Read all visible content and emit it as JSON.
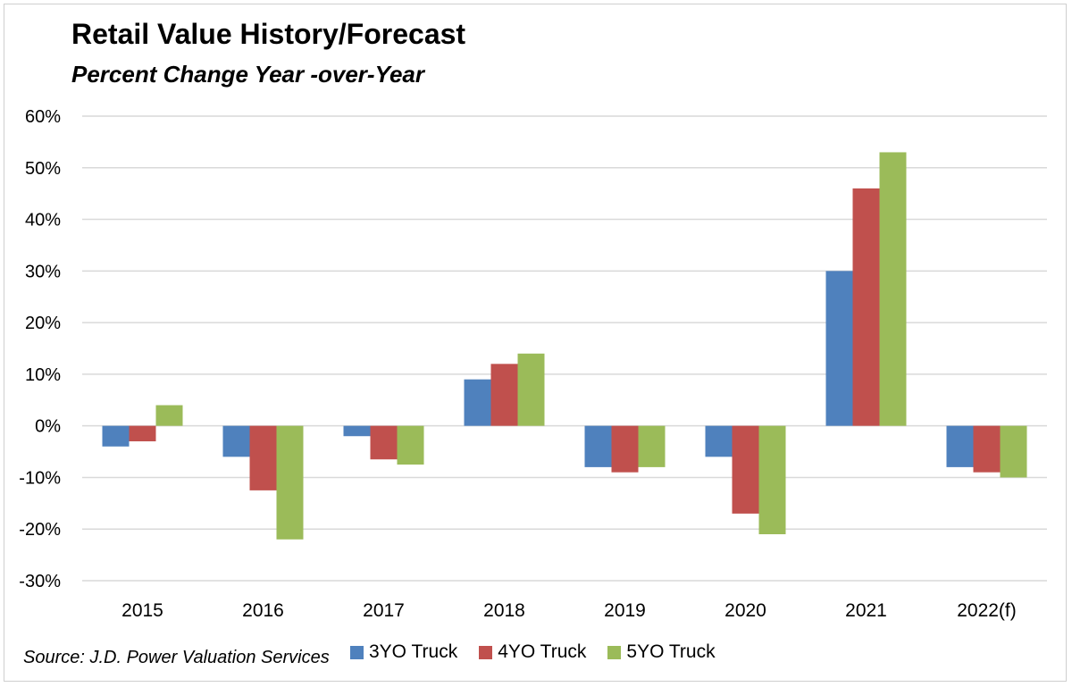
{
  "chart_data": {
    "type": "bar",
    "title": "Retail Value History/Forecast",
    "subtitle": "Percent Change Year -over-Year",
    "categories": [
      "2015",
      "2016",
      "2017",
      "2018",
      "2019",
      "2020",
      "2021",
      "2022(f)"
    ],
    "series": [
      {
        "name": "3YO Truck",
        "color": "#4f81bd",
        "values": [
          -4,
          -6,
          -2,
          9,
          -8,
          -6,
          30,
          -8
        ]
      },
      {
        "name": "4YO Truck",
        "color": "#c0504d",
        "values": [
          -3,
          -12.5,
          -6.5,
          12,
          -9,
          -17,
          46,
          -9
        ]
      },
      {
        "name": "5YO Truck",
        "color": "#9bbb59",
        "values": [
          4,
          -22,
          -7.5,
          14,
          -8,
          -21,
          53,
          -10
        ]
      }
    ],
    "ylim": [
      -30,
      60
    ],
    "yticks": [
      60,
      50,
      40,
      30,
      20,
      10,
      0,
      -10,
      -20,
      -30
    ],
    "ytick_labels": [
      "60%",
      "50%",
      "40%",
      "30%",
      "20%",
      "10%",
      "0%",
      "-10%",
      "-20%",
      "-30%"
    ],
    "grid": true,
    "legend_position": "bottom",
    "source": "Source: J.D. Power Valuation Services"
  }
}
